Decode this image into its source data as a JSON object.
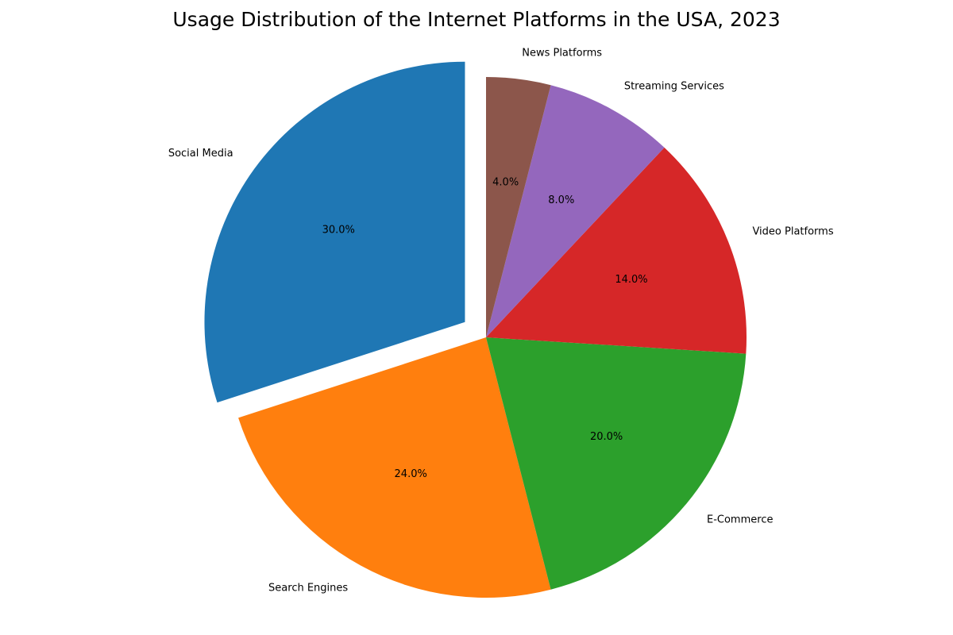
{
  "chart_data": {
    "type": "pie",
    "title": "Usage Distribution of the Internet Platforms in the USA, 2023",
    "start_angle_deg": 90,
    "direction": "counterclockwise",
    "exploded": [
      "Social Media"
    ],
    "slices": [
      {
        "label": "Social Media",
        "value": 30,
        "pct_label": "30.0%",
        "color": "#1f77b4"
      },
      {
        "label": "Search Engines",
        "value": 24,
        "pct_label": "24.0%",
        "color": "#ff7f0e"
      },
      {
        "label": "E-Commerce",
        "value": 20,
        "pct_label": "20.0%",
        "color": "#2ca02c"
      },
      {
        "label": "Video Platforms",
        "value": 14,
        "pct_label": "14.0%",
        "color": "#d62728"
      },
      {
        "label": "Streaming Services",
        "value": 8,
        "pct_label": "8.0%",
        "color": "#9467bd"
      },
      {
        "label": "News Platforms",
        "value": 4,
        "pct_label": "4.0%",
        "color": "#8c564b"
      }
    ]
  }
}
